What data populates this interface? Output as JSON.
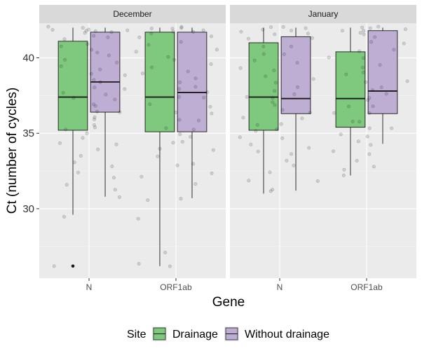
{
  "chart_data": {
    "type": "boxplot",
    "facet_by": "Month",
    "panels": [
      {
        "strip_label": "December",
        "groups": [
          {
            "gene": "N",
            "series": "Drainage",
            "min": 29.6,
            "q1": 35.2,
            "median": 37.4,
            "q3": 41.1,
            "max": 42.0,
            "outliers": [
              26.2
            ],
            "points": [
              41.9,
              41.7,
              42.0,
              41.8,
              41.5,
              41.2,
              40.8,
              40.3,
              39.8,
              39.4,
              38.9,
              38.5,
              38.1,
              37.7,
              37.3,
              36.9,
              36.5,
              36.0,
              35.6,
              35.2,
              34.7,
              34.3,
              33.9,
              33.1,
              32.4,
              31.6,
              29.5,
              26.2
            ]
          },
          {
            "gene": "N",
            "series": "Without drainage",
            "min": 30.8,
            "q1": 36.4,
            "median": 38.4,
            "q3": 41.7,
            "max": 42.0,
            "outliers": [],
            "points": [
              42.0,
              41.9,
              41.8,
              41.7,
              41.6,
              41.3,
              40.9,
              40.5,
              40.1,
              39.7,
              39.2,
              38.8,
              38.4,
              38.0,
              37.6,
              37.2,
              36.8,
              36.4,
              35.9,
              35.4,
              35.0,
              34.2,
              33.5,
              32.8,
              32.0,
              31.2,
              30.8
            ]
          },
          {
            "gene": "ORF1ab",
            "series": "Drainage",
            "min": 26.2,
            "q1": 35.1,
            "median": 37.4,
            "q3": 41.7,
            "max": 42.0,
            "outliers": [],
            "points": [
              42.0,
              41.9,
              41.8,
              41.6,
              41.3,
              40.9,
              40.4,
              39.9,
              39.4,
              38.9,
              38.4,
              37.9,
              37.4,
              36.9,
              36.4,
              35.9,
              35.4,
              34.9,
              34.4,
              34.0,
              33.5,
              32.8,
              32.1,
              30.6,
              29.4,
              27.1,
              26.3
            ]
          },
          {
            "gene": "ORF1ab",
            "series": "Without drainage",
            "min": 30.7,
            "q1": 35.1,
            "median": 37.7,
            "q3": 41.7,
            "max": 42.0,
            "outliers": [],
            "points": [
              42.0,
              41.9,
              41.8,
              41.7,
              41.4,
              41.0,
              40.6,
              40.1,
              39.6,
              39.1,
              38.6,
              38.1,
              37.7,
              37.3,
              36.8,
              36.3,
              35.8,
              35.3,
              34.8,
              34.4,
              33.9,
              33.0,
              32.3,
              31.6,
              30.7,
              26.2
            ]
          }
        ]
      },
      {
        "strip_label": "January",
        "groups": [
          {
            "gene": "N",
            "series": "Drainage",
            "min": 31.0,
            "q1": 35.2,
            "median": 37.4,
            "q3": 41.0,
            "max": 42.0,
            "outliers": [],
            "points": [
              42.0,
              41.9,
              41.8,
              41.6,
              41.2,
              40.8,
              40.3,
              39.8,
              39.3,
              38.8,
              38.3,
              37.8,
              37.4,
              37.0,
              36.5,
              36.0,
              35.6,
              35.2,
              34.8,
              34.3,
              33.8,
              33.2,
              32.4,
              31.8,
              31.1
            ]
          },
          {
            "gene": "N",
            "series": "Without drainage",
            "min": 31.2,
            "q1": 36.3,
            "median": 37.3,
            "q3": 41.4,
            "max": 42.0,
            "outliers": [],
            "points": [
              42.0,
              41.9,
              41.8,
              41.6,
              41.3,
              40.8,
              40.2,
              39.7,
              39.1,
              38.6,
              38.0,
              37.6,
              37.3,
              36.9,
              36.4,
              36.0,
              35.6,
              35.2,
              34.7,
              34.1,
              33.6,
              32.9,
              31.9,
              31.3
            ]
          },
          {
            "gene": "ORF1ab",
            "series": "Drainage",
            "min": 32.2,
            "q1": 35.4,
            "median": 37.3,
            "q3": 40.4,
            "max": 42.0,
            "outliers": [],
            "points": [
              42.0,
              41.9,
              41.8,
              41.5,
              41.0,
              40.5,
              40.0,
              39.4,
              38.9,
              38.4,
              37.9,
              37.3,
              36.8,
              36.3,
              35.8,
              35.4,
              34.9,
              34.4,
              33.8,
              33.2,
              32.6,
              32.2
            ]
          },
          {
            "gene": "ORF1ab",
            "series": "Without drainage",
            "min": 34.3,
            "q1": 36.3,
            "median": 37.8,
            "q3": 41.8,
            "max": 42.0,
            "outliers": [],
            "points": [
              42.0,
              41.9,
              41.8,
              41.7,
              41.4,
              41.0,
              40.5,
              40.0,
              39.5,
              39.0,
              38.5,
              38.0,
              37.6,
              37.2,
              36.8,
              36.3,
              35.8,
              35.3,
              34.8,
              34.3,
              33.6,
              32.8
            ]
          }
        ]
      }
    ],
    "categories": [
      "N",
      "ORF1ab"
    ],
    "xlabel": "Gene",
    "ylabel": "Ct (number of cycles)",
    "ylim": [
      25.4,
      42.3
    ],
    "yticks": [
      30,
      35,
      40
    ],
    "legend": {
      "title": "Site",
      "position": "bottom",
      "entries": [
        {
          "name": "Drainage",
          "color": "#7fc97f"
        },
        {
          "name": "Without drainage",
          "color": "#beaed4"
        }
      ]
    },
    "colors": {
      "panel_bg": "#ebebeb",
      "grid_major": "#ffffff",
      "strip_bg": "#d9d9d9"
    }
  }
}
